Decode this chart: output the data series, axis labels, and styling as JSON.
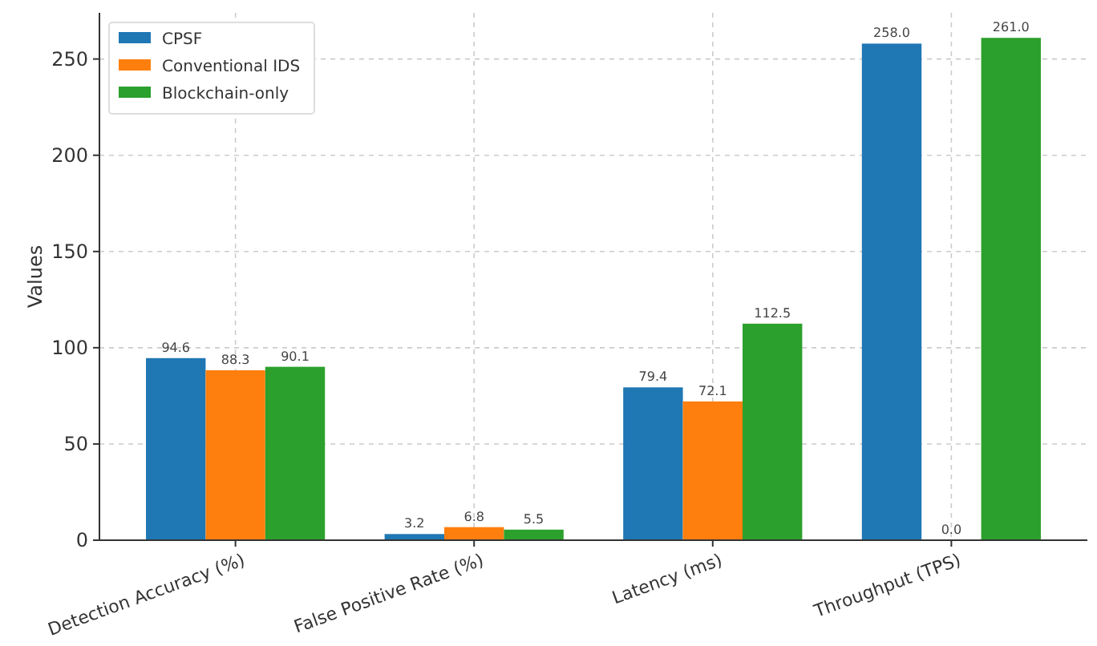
{
  "chart_data": {
    "type": "bar",
    "categories": [
      "Detection Accuracy (%)",
      "False Positive Rate (%)",
      "Latency (ms)",
      "Throughput (TPS)"
    ],
    "ylabel": "Values",
    "series": [
      {
        "name": "CPSF",
        "color": "#1f77b4",
        "values": [
          94.6,
          3.2,
          79.4,
          258
        ],
        "value_labels": [
          "94.6",
          "3.2",
          "79.4",
          "258.0"
        ]
      },
      {
        "name": "Conventional IDS",
        "color": "#ff7f0e",
        "values": [
          88.3,
          6.8,
          72.1,
          0
        ],
        "value_labels": [
          "88.3",
          "6.8",
          "72.1",
          "0.0"
        ]
      },
      {
        "name": "Blockchain-only",
        "color": "#2ca02c",
        "values": [
          90.1,
          5.5,
          112.5,
          261
        ],
        "value_labels": [
          "90.1",
          "5.5",
          "112.5",
          "261.0"
        ]
      }
    ],
    "ylim": [
      0,
      274
    ],
    "yticks": [
      0,
      50,
      100,
      150,
      200,
      250
    ],
    "grid": true,
    "legend": "top left"
  }
}
